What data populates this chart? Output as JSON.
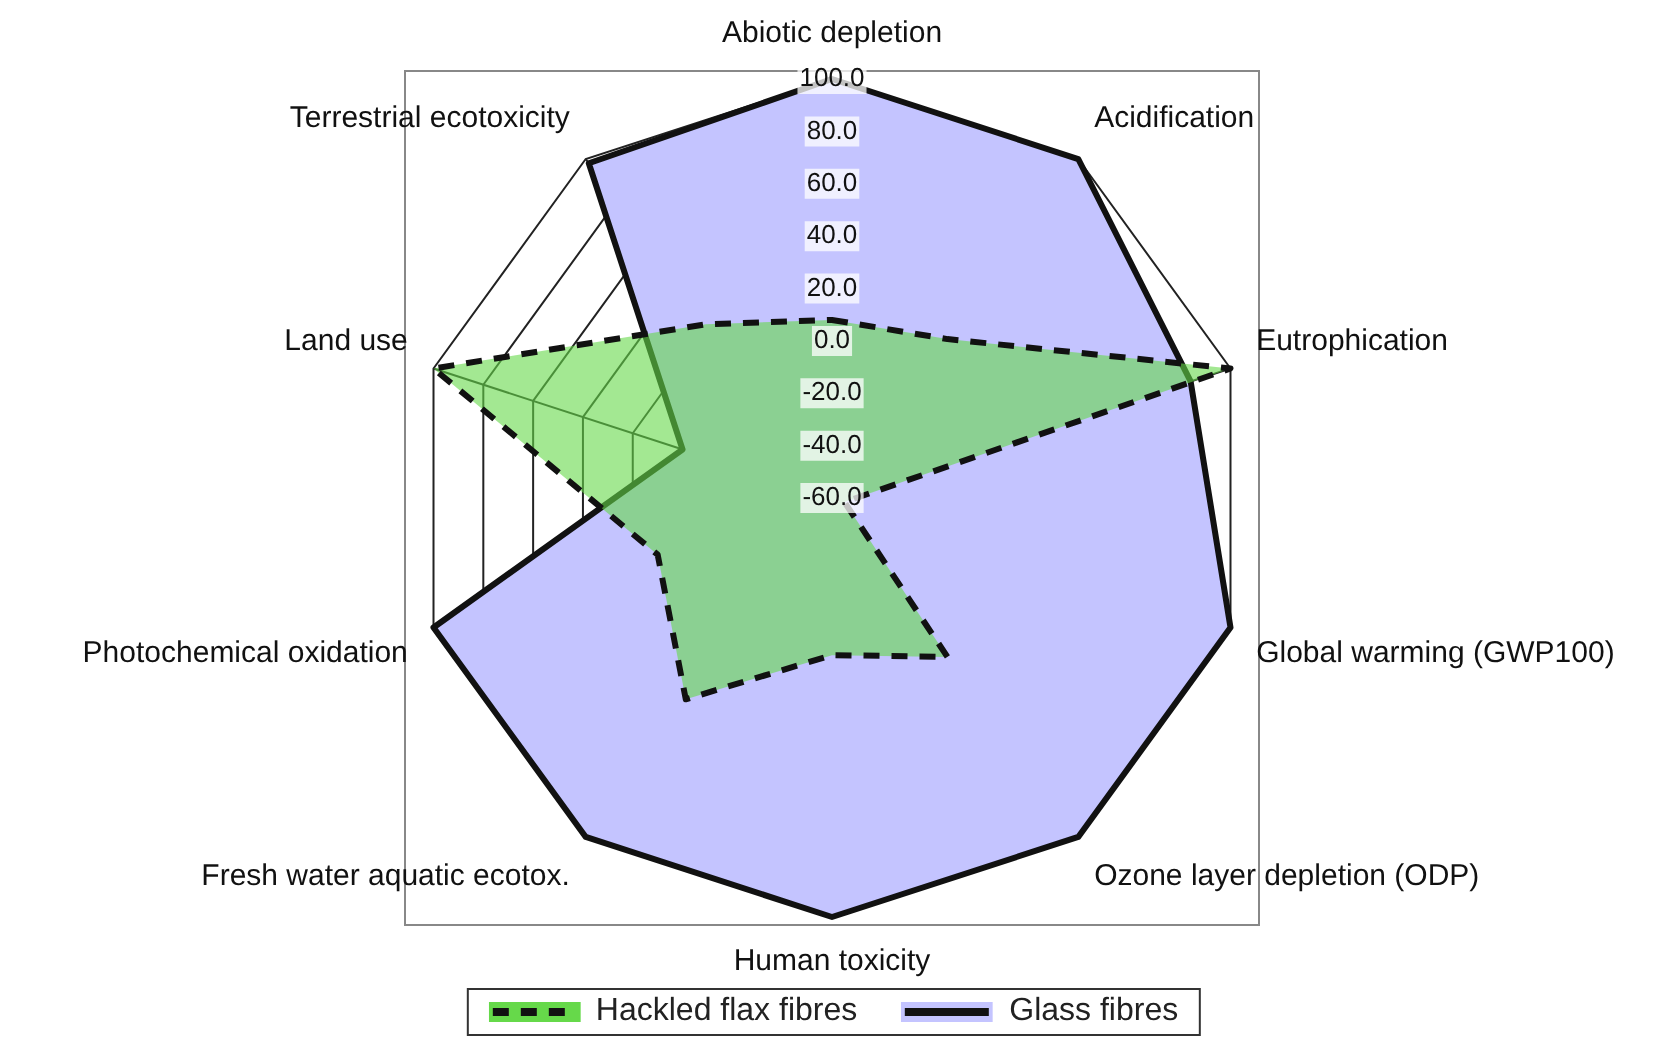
{
  "chart_data": {
    "type": "radar",
    "categories": [
      "Abiotic depletion",
      "Acidification",
      "Eutrophication",
      "Global warming (GWP100)",
      "Ozone layer depletion (ODP)",
      "Human toxicity",
      "Fresh water aquatic ecotox.",
      "Photochemical oxidation",
      "Land use",
      "Terrestrial ecotoxicity"
    ],
    "series": [
      {
        "name": "Hackled flax fibres",
        "color": "#66d94a",
        "line_style": "dashed",
        "values": [
          8,
          15,
          100,
          -55,
          15,
          0,
          35,
          10,
          100,
          22
        ]
      },
      {
        "name": "Glass fibres",
        "color": "#c4c4ff",
        "line_style": "solid",
        "values": [
          100,
          100,
          84,
          100,
          100,
          100,
          100,
          100,
          0,
          98
        ]
      }
    ],
    "ylim": [
      -60,
      100
    ],
    "yticks": [
      {
        "value": -60,
        "label": "-60.0"
      },
      {
        "value": -40,
        "label": "-40.0"
      },
      {
        "value": -20,
        "label": "-20.0"
      },
      {
        "value": 0,
        "label": "0.0"
      },
      {
        "value": 20,
        "label": "20.0"
      },
      {
        "value": 40,
        "label": "40.0"
      },
      {
        "value": 60,
        "label": "60.0"
      },
      {
        "value": 80,
        "label": "80.0"
      },
      {
        "value": 100,
        "label": "100.0"
      }
    ],
    "grid": true,
    "legend": "bottom",
    "marker": "none"
  }
}
